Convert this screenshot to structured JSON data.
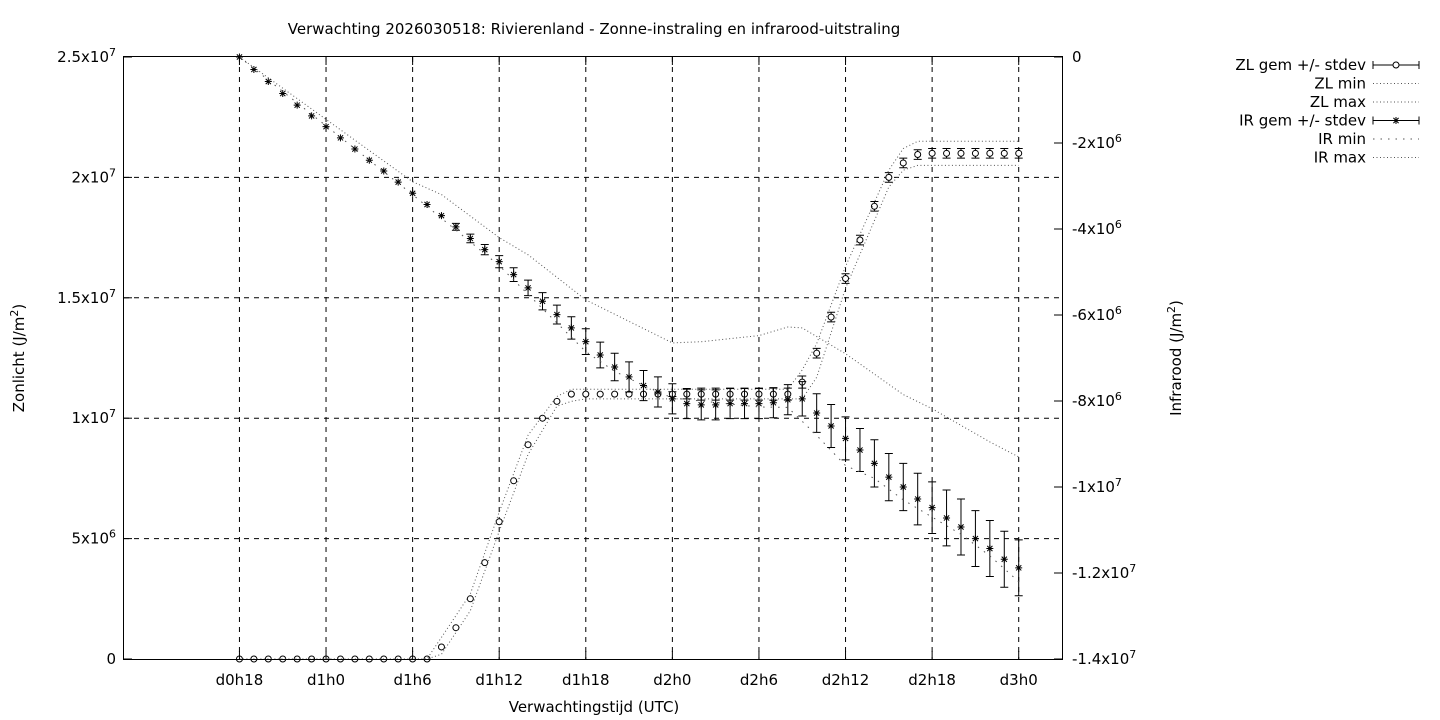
{
  "chart_data": {
    "type": "line",
    "title": "Verwachting 2026030518: Rivierenland - Zonne-instraling en infrarood-uitstraling",
    "xlabel": "Verwachtingstijd (UTC)",
    "ylabel_left_base": "Zonlicht (J/m",
    "ylabel_right_base": "Infrarood (J/m",
    "ylabel_sup": "2",
    "ylabel_close": ")",
    "x_range_hours": [
      -8,
      57
    ],
    "x_ticks": [
      {
        "hour": 0,
        "label": "d0h18"
      },
      {
        "hour": 6,
        "label": "d1h0"
      },
      {
        "hour": 12,
        "label": "d1h6"
      },
      {
        "hour": 18,
        "label": "d1h12"
      },
      {
        "hour": 24,
        "label": "d1h18"
      },
      {
        "hour": 30,
        "label": "d2h0"
      },
      {
        "hour": 36,
        "label": "d2h6"
      },
      {
        "hour": 42,
        "label": "d2h12"
      },
      {
        "hour": 48,
        "label": "d2h18"
      },
      {
        "hour": 54,
        "label": "d3h0"
      }
    ],
    "y_left": {
      "min": 0,
      "max": 25000000,
      "ticks": [
        {
          "value": 0,
          "base": "0",
          "exp": ""
        },
        {
          "value": 5000000,
          "base": "5x10",
          "exp": "6"
        },
        {
          "value": 10000000,
          "base": "1x10",
          "exp": "7"
        },
        {
          "value": 15000000,
          "base": "1.5x10",
          "exp": "7"
        },
        {
          "value": 20000000,
          "base": "2x10",
          "exp": "7"
        },
        {
          "value": 25000000,
          "base": "2.5x10",
          "exp": "7"
        }
      ]
    },
    "y_right": {
      "min": -14000000,
      "max": 0,
      "ticks": [
        {
          "value": 0,
          "base": "0",
          "exp": ""
        },
        {
          "value": -2000000,
          "base": "-2x10",
          "exp": "6"
        },
        {
          "value": -4000000,
          "base": "-4x10",
          "exp": "6"
        },
        {
          "value": -6000000,
          "base": "-6x10",
          "exp": "6"
        },
        {
          "value": -8000000,
          "base": "-8x10",
          "exp": "6"
        },
        {
          "value": -10000000,
          "base": "-1x10",
          "exp": "7"
        },
        {
          "value": -12000000,
          "base": "-1.2x10",
          "exp": "7"
        },
        {
          "value": -14000000,
          "base": "-1.4x10",
          "exp": "7"
        }
      ]
    },
    "grid": true,
    "legend_position": "outside-top-right",
    "x_hours": [
      0,
      1,
      2,
      3,
      4,
      5,
      6,
      7,
      8,
      9,
      10,
      11,
      12,
      13,
      14,
      15,
      16,
      17,
      18,
      19,
      20,
      21,
      22,
      23,
      24,
      25,
      26,
      27,
      28,
      29,
      30,
      31,
      32,
      33,
      34,
      35,
      36,
      37,
      38,
      39,
      40,
      41,
      42,
      43,
      44,
      45,
      46,
      47,
      48,
      49,
      50,
      51,
      52,
      53,
      54
    ],
    "series": [
      {
        "name": "ZL gem +/- stdev",
        "axis": "left",
        "marker": "circle",
        "values": [
          0,
          0,
          0,
          0,
          0,
          0,
          0,
          0,
          0,
          0,
          0,
          0,
          0,
          0,
          500000,
          1300000,
          2500000,
          4000000,
          5700000,
          7400000,
          8900000,
          10000000,
          10700000,
          11000000,
          11000000,
          11000000,
          11000000,
          11000000,
          11000000,
          11000000,
          11000000,
          11000000,
          11000000,
          11000000,
          11000000,
          11000000,
          11000000,
          11000000,
          11000000,
          11500000,
          12700000,
          14200000,
          15800000,
          17400000,
          18800000,
          20000000,
          20600000,
          20950000,
          21000000,
          21000000,
          21000000,
          21000000,
          21000000,
          21000000,
          21000000
        ],
        "stdev": [
          0,
          0,
          0,
          0,
          0,
          0,
          0,
          0,
          0,
          0,
          0,
          0,
          0,
          0,
          0,
          0,
          0,
          0,
          0,
          0,
          0,
          0,
          0,
          0,
          0,
          0,
          0,
          0,
          0,
          0,
          100000,
          200000,
          250000,
          250000,
          250000,
          250000,
          250000,
          250000,
          250000,
          250000,
          200000,
          200000,
          200000,
          200000,
          200000,
          200000,
          200000,
          200000,
          200000,
          200000,
          200000,
          200000,
          200000,
          200000,
          200000
        ]
      },
      {
        "name": "ZL min",
        "axis": "left",
        "style": "dotted",
        "x": [
          0,
          13,
          14,
          16,
          18,
          20,
          22,
          23,
          24,
          30,
          39,
          40,
          42,
          45,
          46,
          47,
          49,
          54
        ],
        "values": [
          0,
          0,
          200000,
          2000000,
          5300000,
          8500000,
          10500000,
          10700000,
          10800000,
          10800000,
          10800000,
          11700000,
          15400000,
          19600000,
          20300000,
          20500000,
          20500000,
          20500000
        ]
      },
      {
        "name": "ZL max",
        "axis": "left",
        "style": "dotted",
        "x": [
          0,
          13,
          14,
          16,
          18,
          20,
          22,
          23,
          24,
          30,
          38,
          39,
          40,
          42,
          45,
          46,
          47,
          54
        ],
        "values": [
          0,
          0,
          900000,
          2700000,
          6100000,
          9300000,
          10900000,
          11200000,
          11200000,
          11200000,
          11200000,
          12000000,
          13100000,
          16300000,
          20300000,
          21200000,
          21500000,
          21500000
        ]
      },
      {
        "name": "IR gem +/- stdev",
        "axis": "right",
        "marker": "star",
        "values": [
          0,
          -290000,
          -570000,
          -850000,
          -1120000,
          -1370000,
          -1620000,
          -1880000,
          -2140000,
          -2400000,
          -2650000,
          -2910000,
          -3170000,
          -3430000,
          -3690000,
          -3950000,
          -4220000,
          -4480000,
          -4760000,
          -5060000,
          -5370000,
          -5680000,
          -5990000,
          -6300000,
          -6620000,
          -6930000,
          -7210000,
          -7440000,
          -7640000,
          -7790000,
          -7950000,
          -8060000,
          -8090000,
          -8090000,
          -8060000,
          -8060000,
          -8060000,
          -8040000,
          -7970000,
          -7950000,
          -8280000,
          -8580000,
          -8870000,
          -9140000,
          -9450000,
          -9770000,
          -10000000,
          -10280000,
          -10480000,
          -10720000,
          -10930000,
          -11200000,
          -11430000,
          -11680000,
          -11880000
        ],
        "stdev": [
          0,
          0,
          0,
          0,
          0,
          0,
          0,
          0,
          0,
          0,
          0,
          0,
          0,
          0,
          0,
          80000,
          100000,
          120000,
          140000,
          160000,
          180000,
          200000,
          220000,
          260000,
          300000,
          300000,
          320000,
          350000,
          350000,
          350000,
          350000,
          350000,
          350000,
          350000,
          350000,
          350000,
          350000,
          350000,
          350000,
          400000,
          450000,
          500000,
          500000,
          500000,
          550000,
          550000,
          550000,
          600000,
          600000,
          650000,
          650000,
          650000,
          650000,
          650000,
          650000
        ]
      },
      {
        "name": "IR min",
        "axis": "right",
        "style": "dotted",
        "x": [
          0,
          12,
          18,
          24,
          26,
          28,
          30,
          36,
          38,
          40,
          42,
          44,
          46,
          48,
          50,
          52,
          54
        ],
        "values": [
          0,
          -3200000,
          -4850000,
          -6850000,
          -7310000,
          -7640000,
          -7930000,
          -8140000,
          -8150000,
          -8800000,
          -9500000,
          -9800000,
          -10300000,
          -10700000,
          -11100000,
          -11600000,
          -12200000
        ]
      },
      {
        "name": "IR max",
        "axis": "right",
        "style": "dotted",
        "x": [
          0,
          12,
          14,
          18,
          20,
          24,
          30,
          32,
          36,
          38,
          39,
          42,
          46,
          48,
          52,
          54
        ],
        "values": [
          0,
          -2900000,
          -3200000,
          -4200000,
          -4600000,
          -5650000,
          -6650000,
          -6620000,
          -6480000,
          -6280000,
          -6300000,
          -6900000,
          -7850000,
          -8180000,
          -8950000,
          -9300000
        ]
      }
    ]
  }
}
